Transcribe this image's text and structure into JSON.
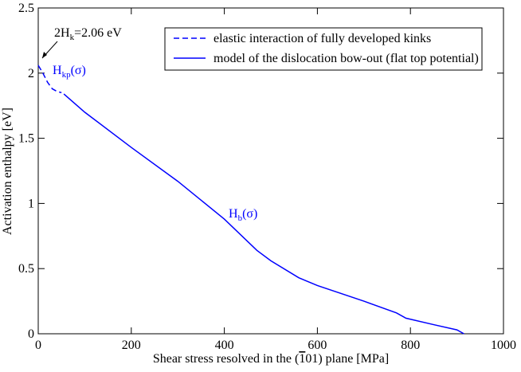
{
  "chart_data": {
    "type": "line",
    "xlabel": {
      "before": "Shear stress resolved in the (",
      "overlined": "1",
      "after": "01) plane [MPa]"
    },
    "ylabel": "Activation enthalpy [eV]",
    "xlim": [
      0,
      1000
    ],
    "ylim": [
      0,
      2.5
    ],
    "xticks": [
      0,
      200,
      400,
      600,
      800,
      1000
    ],
    "yticks": [
      0,
      0.5,
      1,
      1.5,
      2,
      2.5
    ],
    "legend": "top-right",
    "series": [
      {
        "name": "elastic interaction of fully developed kinks",
        "color": "#0000ff",
        "dash": true,
        "x": [
          0,
          10,
          20,
          30,
          40,
          50
        ],
        "values": [
          2.06,
          2.0,
          1.93,
          1.88,
          1.86,
          1.85
        ]
      },
      {
        "name": "model of the dislocation bow-out (flat top potential)",
        "color": "#0000ff",
        "dash": false,
        "x": [
          55,
          100,
          200,
          300,
          400,
          470,
          500,
          560,
          600,
          700,
          770,
          790,
          850,
          900,
          915
        ],
        "values": [
          1.84,
          1.7,
          1.43,
          1.17,
          0.88,
          0.64,
          0.56,
          0.43,
          0.37,
          0.25,
          0.16,
          0.12,
          0.07,
          0.03,
          0.0
        ]
      }
    ],
    "annotations": [
      {
        "main": "2H",
        "sub": "k",
        "rest": "=2.06 eV"
      },
      {
        "main": "H",
        "sub": "kp",
        "rest": "(σ)"
      },
      {
        "main": "H",
        "sub": "b",
        "rest": "(σ)"
      }
    ]
  }
}
